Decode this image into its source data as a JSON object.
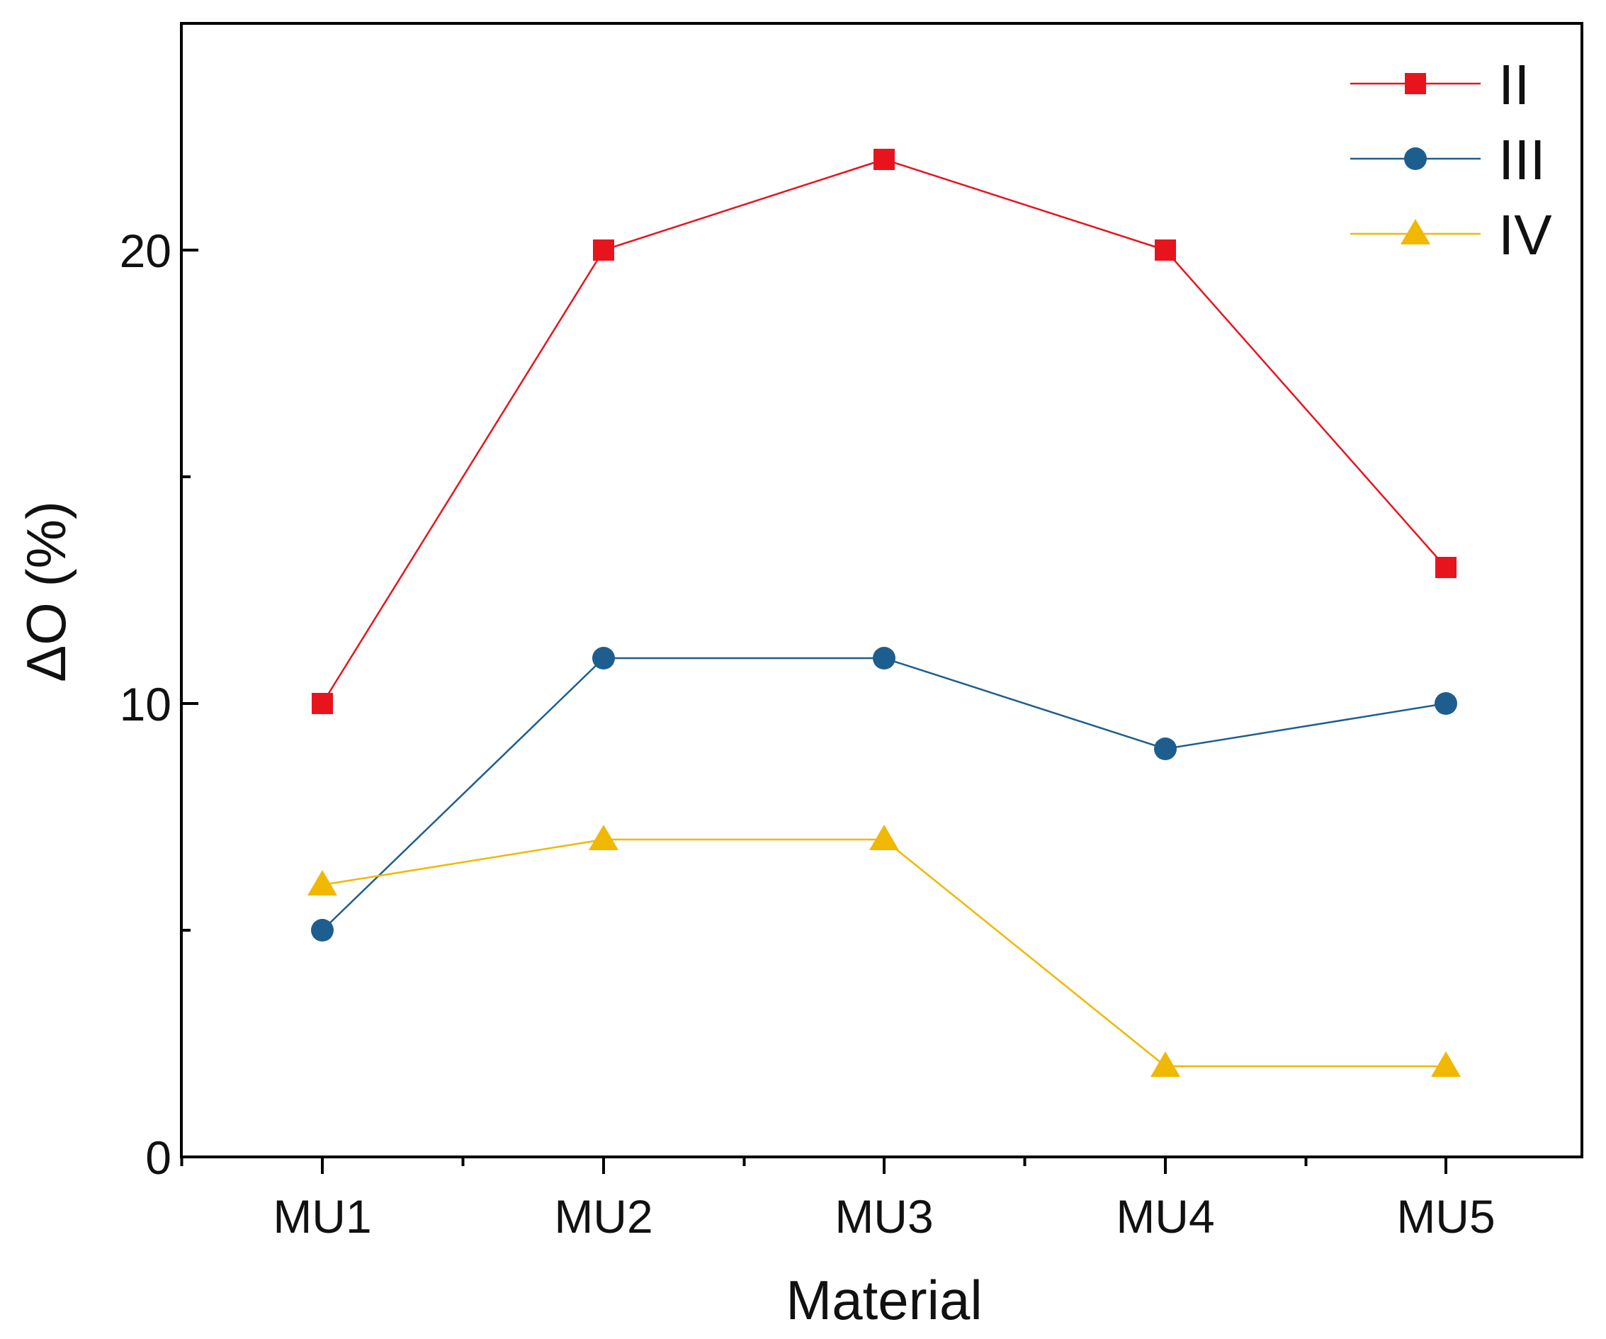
{
  "chart_data": {
    "type": "line",
    "title": "",
    "xlabel": "Material",
    "ylabel": "ΔO (%)",
    "categories": [
      "MU1",
      "MU2",
      "MU3",
      "MU4",
      "MU5"
    ],
    "ylim": [
      0,
      25
    ],
    "yticks": [
      0,
      10,
      20
    ],
    "y_minor_step": 5,
    "grid": false,
    "legend_position": "top-right",
    "series": [
      {
        "name": "II",
        "marker": "square",
        "color": "#e8141d",
        "values": [
          10,
          20,
          22,
          20,
          13
        ]
      },
      {
        "name": "III",
        "marker": "circle",
        "color": "#1d5e8e",
        "values": [
          5,
          11,
          11,
          9,
          10
        ]
      },
      {
        "name": "IV",
        "marker": "triangle",
        "color": "#f0b800",
        "values": [
          6,
          7,
          7,
          2,
          2
        ]
      }
    ]
  }
}
